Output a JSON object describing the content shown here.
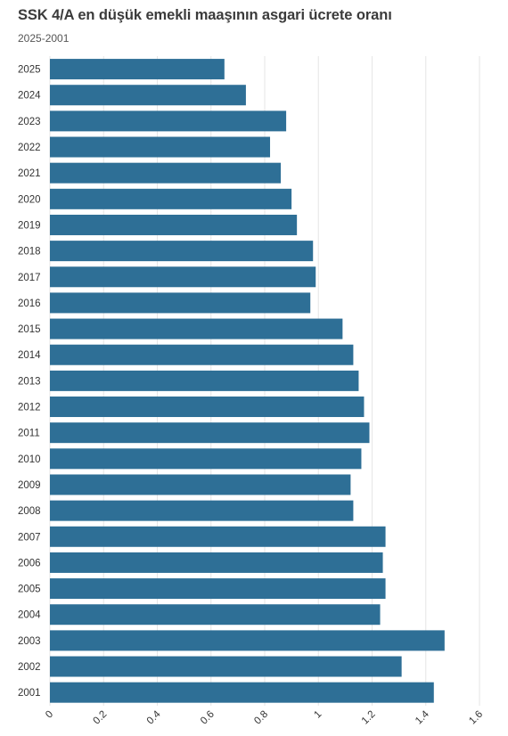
{
  "chart_data": {
    "type": "bar",
    "orientation": "horizontal",
    "title": "SSK 4/A en düşük emekli maaşının asgari ücrete oranı",
    "subtitle": "2025-2001",
    "categories": [
      "2025",
      "2024",
      "2023",
      "2022",
      "2021",
      "2020",
      "2019",
      "2018",
      "2017",
      "2016",
      "2015",
      "2014",
      "2013",
      "2012",
      "2011",
      "2010",
      "2009",
      "2008",
      "2007",
      "2006",
      "2005",
      "2004",
      "2003",
      "2002",
      "2001"
    ],
    "values": [
      0.65,
      0.73,
      0.88,
      0.82,
      0.86,
      0.9,
      0.92,
      0.98,
      0.99,
      0.97,
      1.09,
      1.13,
      1.15,
      1.17,
      1.19,
      1.16,
      1.12,
      1.13,
      1.25,
      1.24,
      1.25,
      1.23,
      1.47,
      1.31,
      1.43
    ],
    "xlim": [
      0,
      1.6
    ],
    "xticks": [
      "0",
      "0.2",
      "0.4",
      "0.6",
      "0.8",
      "1",
      "1.2",
      "1.4",
      "1.6"
    ],
    "tick_values": [
      0,
      0.2,
      0.4,
      0.6,
      0.8,
      1,
      1.2,
      1.4,
      1.6
    ],
    "grid": true,
    "bar_color": "#2e6f96",
    "grid_color": "#e6e6e6"
  }
}
